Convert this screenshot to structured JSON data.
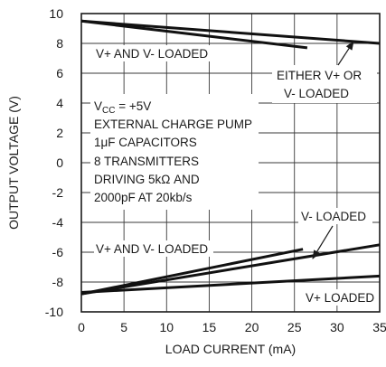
{
  "chart_data": {
    "type": "line",
    "title": "",
    "xlabel": "LOAD CURRENT (mA)",
    "ylabel": "OUTPUT VOLTAGE (V)",
    "xlim": [
      0,
      35
    ],
    "ylim": [
      -10,
      10
    ],
    "x_ticks": [
      0,
      5,
      10,
      15,
      20,
      25,
      30,
      35
    ],
    "x_tick_labels": [
      "0",
      "5",
      "10",
      "15",
      "20",
      "25",
      "30",
      "35"
    ],
    "y_ticks": [
      10,
      8,
      6,
      4,
      2,
      0,
      -2,
      -4,
      -6,
      -8,
      -10
    ],
    "y_tick_labels": [
      "10",
      "8",
      "6",
      "4",
      "2",
      "0",
      "-2",
      "-4",
      "-6",
      "-8",
      "-10"
    ],
    "grid": true,
    "legend": "none",
    "series": [
      {
        "x": [
          0,
          26.5
        ],
        "y": [
          9.5,
          7.7
        ]
      },
      {
        "x": [
          0,
          35
        ],
        "y": [
          9.5,
          8.0
        ]
      },
      {
        "x": [
          0,
          26
        ],
        "y": [
          -8.8,
          -5.8
        ]
      },
      {
        "x": [
          0,
          35
        ],
        "y": [
          -8.8,
          -5.5
        ]
      },
      {
        "x": [
          0,
          35
        ],
        "y": [
          -8.7,
          -7.6
        ]
      }
    ],
    "annotations": [
      {
        "id": "vplus-vminus-loaded-top",
        "lines": [
          "V+ AND V- LOADED"
        ]
      },
      {
        "id": "either-loaded",
        "lines": [
          "EITHER V+ OR",
          "V- LOADED"
        ]
      },
      {
        "id": "conditions",
        "lines": [
          "V_CC = +5V",
          "EXTERNAL CHARGE PUMP",
          "1μF CAPACITORS",
          "8 TRANSMITTERS",
          "DRIVING 5kΩ AND",
          "2000pF AT 20kb/s"
        ]
      },
      {
        "id": "vminus-loaded",
        "lines": [
          "V- LOADED"
        ]
      },
      {
        "id": "vplus-vminus-loaded-bottom",
        "lines": [
          "V+ AND V- LOADED"
        ]
      },
      {
        "id": "vplus-loaded",
        "lines": [
          "V+ LOADED"
        ]
      }
    ]
  }
}
